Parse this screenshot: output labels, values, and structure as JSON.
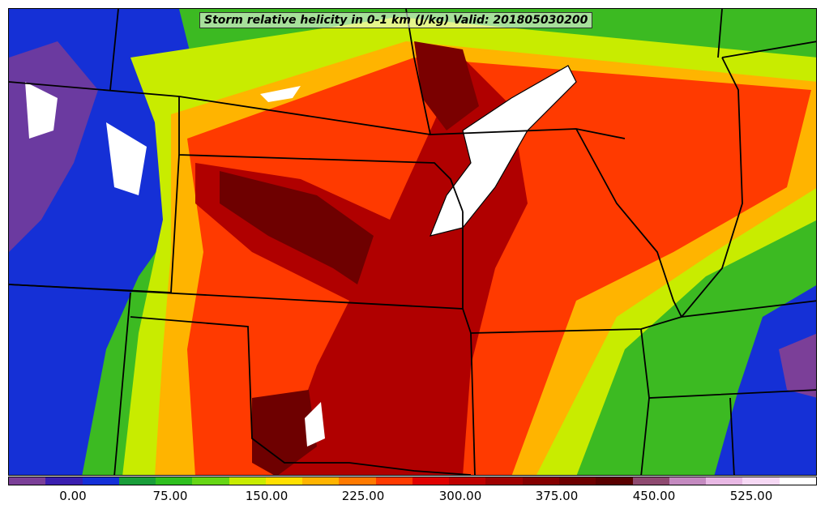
{
  "title": "Storm relative helicity in 0-1 km (J/kg) Valid: 201805030200",
  "colorbar": {
    "colors": [
      "#7b3f98",
      "#3a1fb0",
      "#1430d8",
      "#1a9e3a",
      "#2fbf1f",
      "#66d615",
      "#c8ec00",
      "#ffe000",
      "#ffb400",
      "#ff7a00",
      "#ff3a00",
      "#e00000",
      "#c00000",
      "#a00000",
      "#850000",
      "#6e0000",
      "#5a0000",
      "#8e4a70",
      "#c48ac0",
      "#e8b8e4",
      "#f6d8f4",
      "#ffffff"
    ],
    "tick_labels": [
      "0.00",
      "75.00",
      "150.00",
      "225.00",
      "300.00",
      "375.00",
      "450.00",
      "525.00"
    ]
  }
}
